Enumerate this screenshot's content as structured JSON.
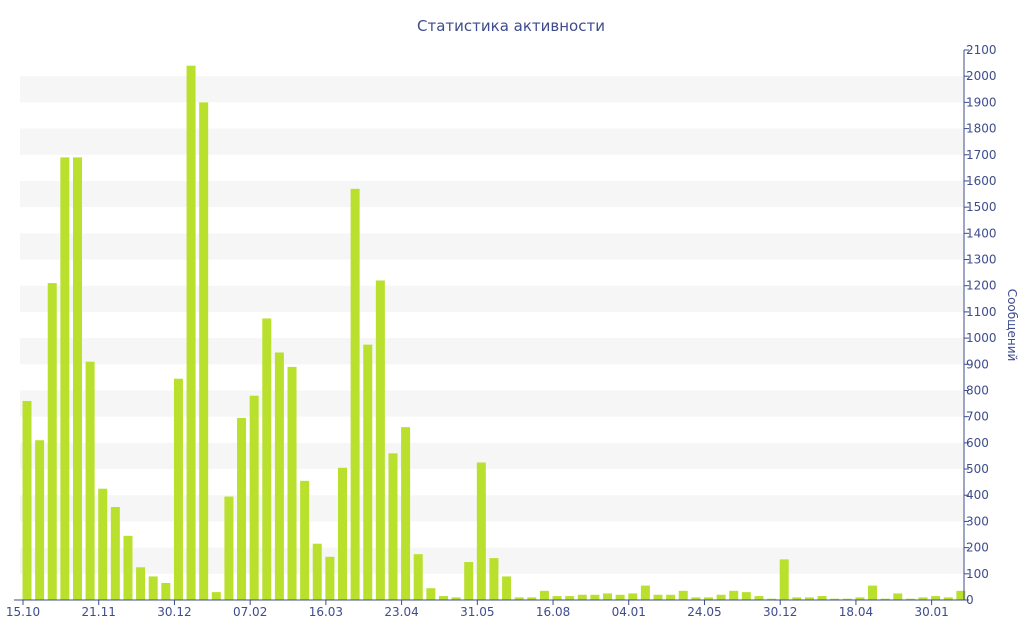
{
  "chart_data": {
    "type": "bar",
    "title": "Статистика активности",
    "xlabel": "",
    "ylabel": "Сообщений",
    "ylim": [
      0,
      2100
    ],
    "yticks": [
      0,
      100,
      200,
      300,
      400,
      500,
      600,
      700,
      800,
      900,
      1000,
      1100,
      1200,
      1300,
      1400,
      1500,
      1600,
      1700,
      1800,
      1900,
      2000,
      2100
    ],
    "y_axis_side": "right",
    "x_tick_labels": [
      {
        "label": "15.10",
        "index": 0
      },
      {
        "label": "21.11",
        "index": 6
      },
      {
        "label": "30.12",
        "index": 12
      },
      {
        "label": "07.02",
        "index": 18
      },
      {
        "label": "16.03",
        "index": 24
      },
      {
        "label": "23.04",
        "index": 30
      },
      {
        "label": "31.05",
        "index": 36
      },
      {
        "label": "16.08",
        "index": 42
      },
      {
        "label": "04.01",
        "index": 48
      },
      {
        "label": "24.05",
        "index": 54
      },
      {
        "label": "30.12",
        "index": 60
      },
      {
        "label": "18.04",
        "index": 66
      },
      {
        "label": "30.01",
        "index": 72
      }
    ],
    "values": [
      760,
      610,
      1210,
      1690,
      1690,
      910,
      425,
      355,
      245,
      125,
      90,
      65,
      845,
      2040,
      1900,
      30,
      395,
      695,
      780,
      1075,
      945,
      890,
      455,
      215,
      165,
      505,
      1570,
      975,
      1220,
      560,
      660,
      175,
      45,
      15,
      10,
      145,
      525,
      160,
      90,
      10,
      10,
      35,
      15,
      15,
      20,
      20,
      25,
      20,
      25,
      55,
      20,
      20,
      35,
      10,
      10,
      20,
      35,
      30,
      15,
      5,
      155,
      10,
      10,
      15,
      5,
      5,
      10,
      55,
      5,
      25,
      5,
      10,
      15,
      10,
      35
    ],
    "bar_color": "#b8e02c",
    "axis_color": "#3e4c8c",
    "band_color": "#f6f6f6",
    "grid_bands": true
  }
}
